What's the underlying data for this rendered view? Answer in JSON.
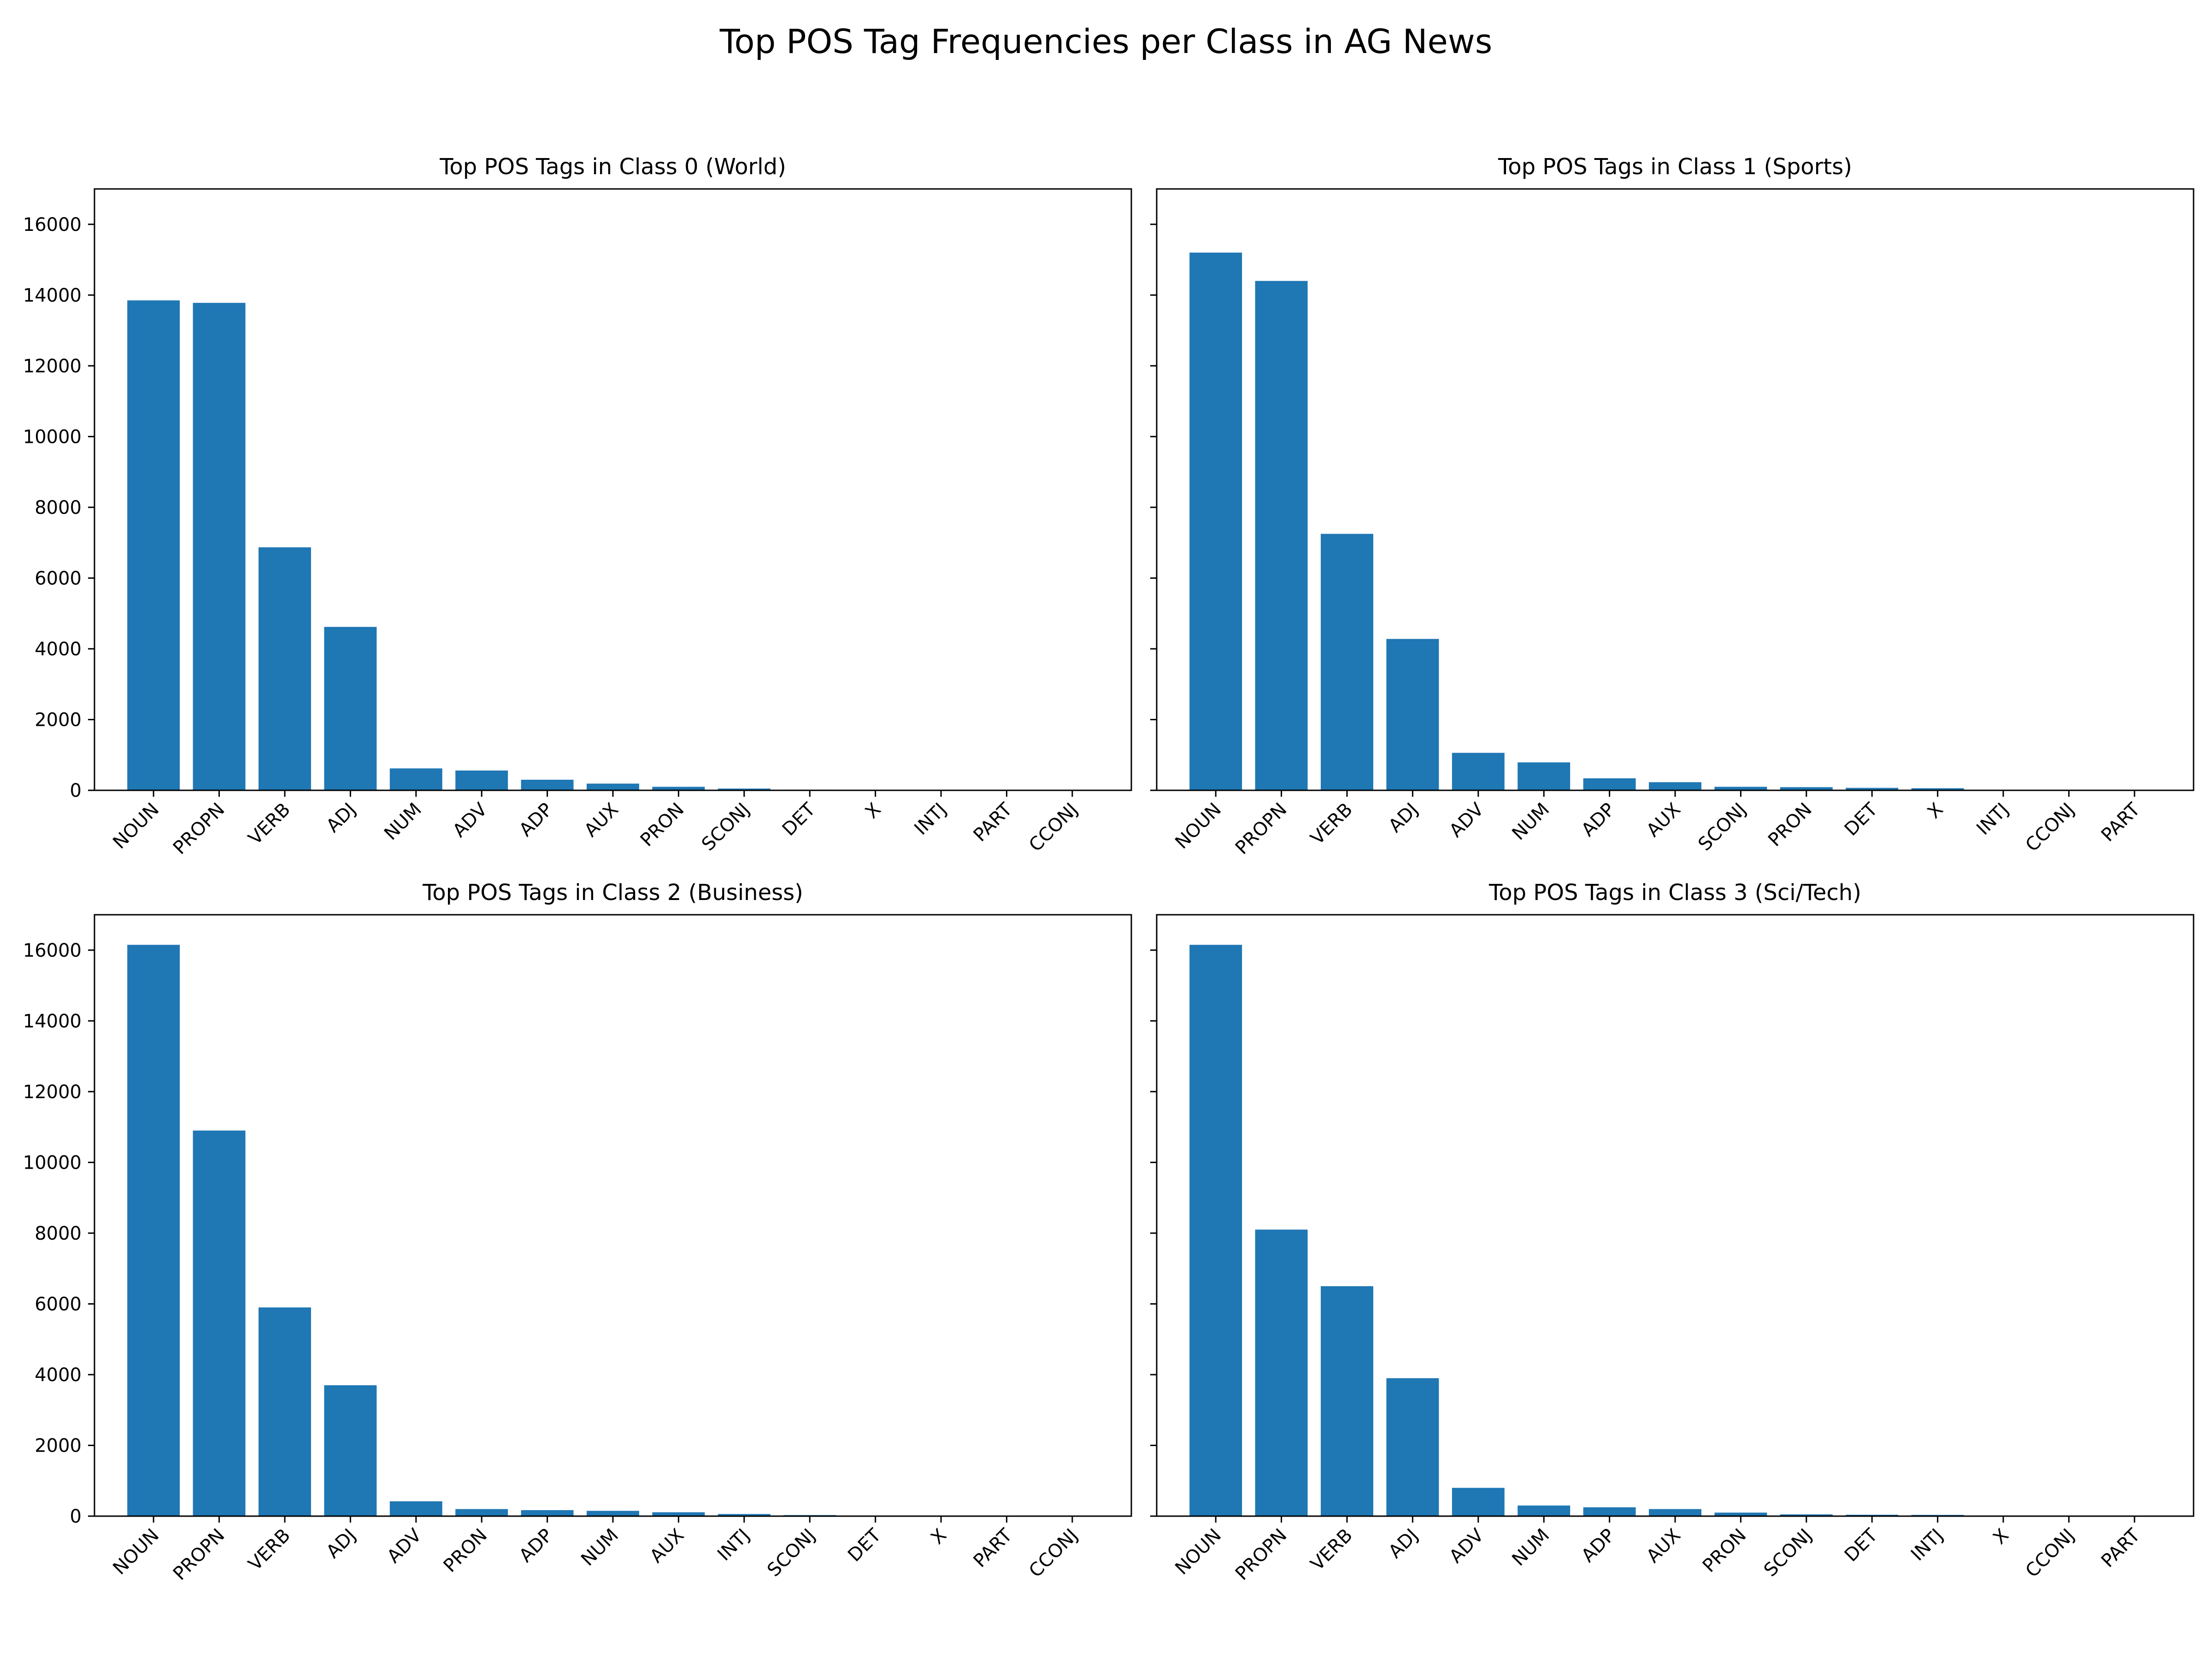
{
  "figure": {
    "title": "Top POS Tag Frequencies per Class in AG News"
  },
  "style": {
    "bar_color": "#1f77b4",
    "axis_color": "#000000"
  },
  "chart_data": [
    {
      "type": "bar",
      "title": "Top POS Tags in Class 0 (World)",
      "categories": [
        "NOUN",
        "PROPN",
        "VERB",
        "ADJ",
        "NUM",
        "ADV",
        "ADP",
        "AUX",
        "PRON",
        "SCONJ",
        "DET",
        "X",
        "INTJ",
        "PART",
        "CCONJ"
      ],
      "values": [
        13850,
        13780,
        6870,
        4620,
        620,
        560,
        300,
        190,
        100,
        50,
        20,
        15,
        5,
        3,
        2
      ],
      "ylim": [
        0,
        17000
      ],
      "yticks": [
        0,
        2000,
        4000,
        6000,
        8000,
        10000,
        12000,
        14000,
        16000
      ],
      "show_ytick_labels": true
    },
    {
      "type": "bar",
      "title": "Top POS Tags in Class 1 (Sports)",
      "categories": [
        "NOUN",
        "PROPN",
        "VERB",
        "ADJ",
        "ADV",
        "NUM",
        "ADP",
        "AUX",
        "SCONJ",
        "PRON",
        "DET",
        "X",
        "INTJ",
        "CCONJ",
        "PART"
      ],
      "values": [
        15200,
        14400,
        7250,
        4280,
        1060,
        790,
        340,
        230,
        100,
        90,
        70,
        60,
        10,
        5,
        3
      ],
      "ylim": [
        0,
        17000
      ],
      "yticks": [
        0,
        2000,
        4000,
        6000,
        8000,
        10000,
        12000,
        14000,
        16000
      ],
      "show_ytick_labels": false
    },
    {
      "type": "bar",
      "title": "Top POS Tags in Class 2 (Business)",
      "categories": [
        "NOUN",
        "PROPN",
        "VERB",
        "ADJ",
        "ADV",
        "PRON",
        "ADP",
        "NUM",
        "AUX",
        "INTJ",
        "SCONJ",
        "DET",
        "X",
        "PART",
        "CCONJ"
      ],
      "values": [
        16150,
        10900,
        5900,
        3700,
        420,
        200,
        170,
        150,
        110,
        60,
        30,
        15,
        5,
        3,
        2
      ],
      "ylim": [
        0,
        17000
      ],
      "yticks": [
        0,
        2000,
        4000,
        6000,
        8000,
        10000,
        12000,
        14000,
        16000
      ],
      "show_ytick_labels": true
    },
    {
      "type": "bar",
      "title": "Top POS Tags in Class 3 (Sci/Tech)",
      "categories": [
        "NOUN",
        "PROPN",
        "VERB",
        "ADJ",
        "ADV",
        "NUM",
        "ADP",
        "AUX",
        "PRON",
        "SCONJ",
        "DET",
        "INTJ",
        "X",
        "CCONJ",
        "PART"
      ],
      "values": [
        16150,
        8100,
        6500,
        3900,
        800,
        300,
        250,
        200,
        100,
        50,
        40,
        35,
        20,
        10,
        3
      ],
      "ylim": [
        0,
        17000
      ],
      "yticks": [
        0,
        2000,
        4000,
        6000,
        8000,
        10000,
        12000,
        14000,
        16000
      ],
      "show_ytick_labels": false
    }
  ]
}
